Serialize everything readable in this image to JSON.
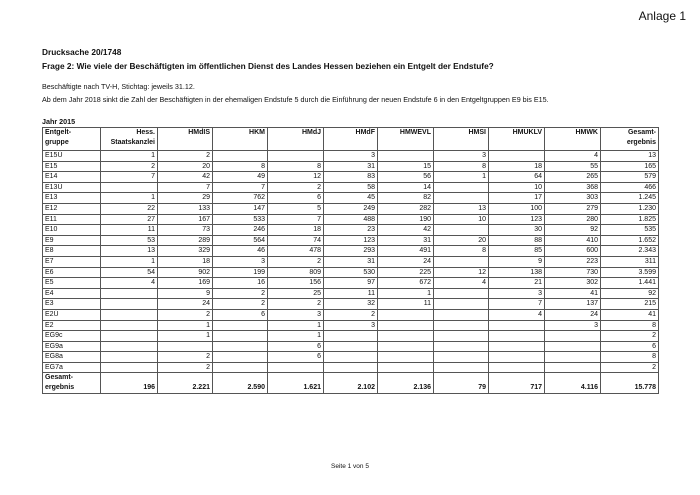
{
  "header": {
    "anlage": "Anlage 1"
  },
  "doc": {
    "drucksache": "Drucksache 20/1748",
    "frage": "Frage 2: Wie viele der Beschäftigten im öffentlichen Dienst des Landes Hessen beziehen ein Entgelt der Endstufe?",
    "note1": "Beschäftigte nach TV-H, Stichtag: jeweils 31.12.",
    "note2": "Ab dem Jahr 2018 sinkt die Zahl der Beschäftigten in der ehemaligen Endstufe 5 durch die Einführung der neuen Endstufe 6 in den Entgeltgruppen E9 bis E15.",
    "jahr": "Jahr 2015"
  },
  "table": {
    "columns": [
      [
        "Entgelt-",
        "gruppe"
      ],
      [
        "Hess.",
        "Staatskanzlei"
      ],
      [
        "HMdIS",
        ""
      ],
      [
        "HKM",
        ""
      ],
      [
        "HMdJ",
        ""
      ],
      [
        "HMdF",
        ""
      ],
      [
        "HMWEVL",
        ""
      ],
      [
        "HMSI",
        ""
      ],
      [
        "HMUKLV",
        ""
      ],
      [
        "HMWK",
        ""
      ],
      [
        "Gesamt-",
        "ergebnis"
      ]
    ],
    "rows": [
      [
        "E15Ü",
        "1",
        "2",
        "",
        "",
        "3",
        "",
        "3",
        "",
        "4",
        "13"
      ],
      [
        "E15",
        "2",
        "20",
        "8",
        "8",
        "31",
        "15",
        "8",
        "18",
        "55",
        "165"
      ],
      [
        "E14",
        "7",
        "42",
        "49",
        "12",
        "83",
        "56",
        "1",
        "64",
        "265",
        "579"
      ],
      [
        "E13Ü",
        "",
        "7",
        "7",
        "2",
        "58",
        "14",
        "",
        "10",
        "368",
        "466"
      ],
      [
        "E13",
        "1",
        "29",
        "762",
        "6",
        "45",
        "82",
        "",
        "17",
        "303",
        "1.245"
      ],
      [
        "E12",
        "22",
        "133",
        "147",
        "5",
        "249",
        "282",
        "13",
        "100",
        "279",
        "1.230"
      ],
      [
        "E11",
        "27",
        "167",
        "533",
        "7",
        "488",
        "190",
        "10",
        "123",
        "280",
        "1.825"
      ],
      [
        "E10",
        "11",
        "73",
        "246",
        "18",
        "23",
        "42",
        "",
        "30",
        "92",
        "535"
      ],
      [
        "E9",
        "53",
        "289",
        "564",
        "74",
        "123",
        "31",
        "20",
        "88",
        "410",
        "1.652"
      ],
      [
        "E8",
        "13",
        "329",
        "46",
        "478",
        "293",
        "491",
        "8",
        "85",
        "600",
        "2.343"
      ],
      [
        "E7",
        "1",
        "18",
        "3",
        "2",
        "31",
        "24",
        "",
        "9",
        "223",
        "311"
      ],
      [
        "E6",
        "54",
        "902",
        "199",
        "809",
        "530",
        "225",
        "12",
        "138",
        "730",
        "3.599"
      ],
      [
        "E5",
        "4",
        "169",
        "16",
        "156",
        "97",
        "672",
        "4",
        "21",
        "302",
        "1.441"
      ],
      [
        "E4",
        "",
        "9",
        "2",
        "25",
        "11",
        "1",
        "",
        "3",
        "41",
        "92"
      ],
      [
        "E3",
        "",
        "24",
        "2",
        "2",
        "32",
        "11",
        "",
        "7",
        "137",
        "215"
      ],
      [
        "E2Ü",
        "",
        "2",
        "6",
        "3",
        "2",
        "",
        "",
        "4",
        "24",
        "41"
      ],
      [
        "E2",
        "",
        "1",
        "",
        "1",
        "3",
        "",
        "",
        "",
        "3",
        "8"
      ],
      [
        "EG9c",
        "",
        "1",
        "",
        "1",
        "",
        "",
        "",
        "",
        "",
        "2"
      ],
      [
        "EG9a",
        "",
        "",
        "",
        "6",
        "",
        "",
        "",
        "",
        "",
        "6"
      ],
      [
        "EG8a",
        "",
        "2",
        "",
        "6",
        "",
        "",
        "",
        "",
        "",
        "8"
      ],
      [
        "EG7a",
        "",
        "2",
        "",
        "",
        "",
        "",
        "",
        "",
        "",
        "2"
      ]
    ],
    "total": [
      [
        "Gesamt-",
        "ergebnis"
      ],
      "196",
      "2.221",
      "2.590",
      "1.621",
      "2.102",
      "2.136",
      "79",
      "717",
      "4.116",
      "15.778"
    ]
  },
  "footer": {
    "page": "Seite 1 von 5"
  }
}
